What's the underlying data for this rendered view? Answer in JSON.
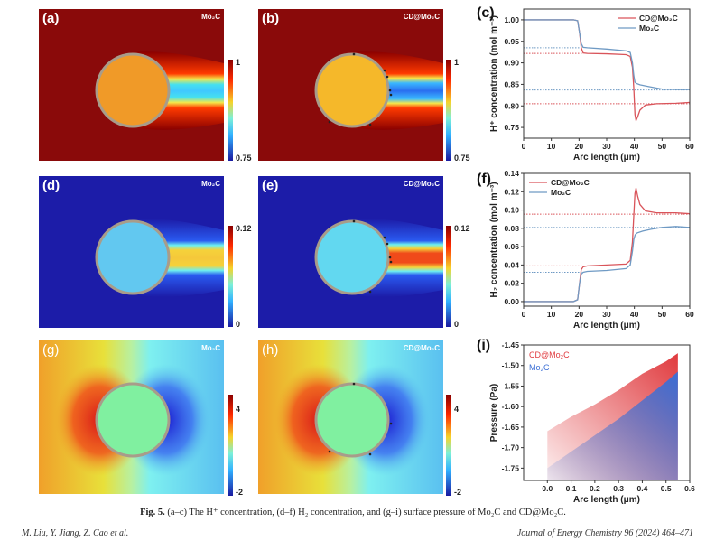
{
  "panels": {
    "a": {
      "label": "(a)",
      "material": "Mo₂C",
      "quantity": "H+ concentration",
      "colorbar": {
        "max": "1",
        "min": "0.75"
      }
    },
    "b": {
      "label": "(b)",
      "material": "CD@Mo₂C",
      "quantity": "H+ concentration",
      "colorbar": {
        "max": "1",
        "min": "0.75"
      }
    },
    "c": {
      "label": "(c)"
    },
    "d": {
      "label": "(d)",
      "material": "Mo₂C",
      "quantity": "H2 concentration",
      "colorbar": {
        "max": "0.12",
        "min": "0"
      }
    },
    "e": {
      "label": "(e)",
      "material": "CD@Mo₂C",
      "quantity": "H2 concentration",
      "colorbar": {
        "max": "0.12",
        "min": "0"
      }
    },
    "f": {
      "label": "(f)"
    },
    "g": {
      "label": "(g)",
      "material": "Mo₂C",
      "quantity": "surface pressure",
      "colorbar": {
        "max": "4",
        "min": "-2"
      }
    },
    "h": {
      "label": "(h)",
      "material": "CD@Mo₂C",
      "quantity": "surface pressure",
      "colorbar": {
        "max": "4",
        "min": "-2"
      }
    },
    "i": {
      "label": "(i)"
    }
  },
  "colors": {
    "cd_mo2c": "#d9545a",
    "mo2c": "#6f9ac4",
    "cd_fill": "#e03a3e",
    "mo2c_fill": "#3b6fd6"
  },
  "chart_data": [
    {
      "id": "c",
      "type": "line",
      "title": "",
      "xlabel": "Arc length (μm)",
      "ylabel": "H⁺ concentration (mol m⁻³)",
      "xlim": [
        0,
        60
      ],
      "ylim": [
        0.725,
        1.025
      ],
      "xticks": [
        0,
        10,
        20,
        30,
        40,
        50,
        60
      ],
      "yticks": [
        0.75,
        0.8,
        0.85,
        0.9,
        0.95,
        1.0
      ],
      "ytick_labels": [
        "0.75",
        "0.80",
        "0.85",
        "0.90",
        "0.95",
        "1.00"
      ],
      "legend": "top-right",
      "series": [
        {
          "name": "CD@Mo₂C",
          "color": "#d9545a",
          "x": [
            0,
            18,
            19.5,
            20.2,
            20.8,
            21.5,
            23,
            30,
            37,
            38.5,
            39.3,
            39.8,
            40.2,
            40.6,
            41.2,
            42,
            44,
            48,
            55,
            60
          ],
          "y": [
            1.0,
            1.0,
            0.998,
            0.97,
            0.935,
            0.923,
            0.922,
            0.921,
            0.919,
            0.915,
            0.89,
            0.84,
            0.78,
            0.766,
            0.775,
            0.79,
            0.802,
            0.805,
            0.806,
            0.808
          ]
        },
        {
          "name": "Mo₂C",
          "color": "#6f9ac4",
          "x": [
            0,
            18,
            19.5,
            20.2,
            20.8,
            21.5,
            23,
            30,
            37,
            38.5,
            39.3,
            39.8,
            40.2,
            40.8,
            42,
            45,
            50,
            55,
            60
          ],
          "y": [
            1.0,
            1.0,
            0.998,
            0.97,
            0.945,
            0.936,
            0.935,
            0.932,
            0.928,
            0.924,
            0.9,
            0.87,
            0.855,
            0.852,
            0.849,
            0.845,
            0.839,
            0.838,
            0.838
          ]
        }
      ],
      "reference_lines": [
        {
          "y": 0.935,
          "color": "#6f9ac4",
          "xmax": 21
        },
        {
          "y": 0.922,
          "color": "#d9545a",
          "xmax": 21
        },
        {
          "y": 0.837,
          "color": "#6f9ac4",
          "xmax": 60
        },
        {
          "y": 0.805,
          "color": "#d9545a",
          "xmax": 60
        }
      ]
    },
    {
      "id": "f",
      "type": "line",
      "title": "",
      "xlabel": "Arc length (μm)",
      "ylabel": "H₂ concentration (mol m⁻³)",
      "xlim": [
        0,
        60
      ],
      "ylim": [
        -0.005,
        0.14
      ],
      "xticks": [
        0,
        10,
        20,
        30,
        40,
        50,
        60
      ],
      "yticks": [
        0.0,
        0.02,
        0.04,
        0.06,
        0.08,
        0.1,
        0.12,
        0.14
      ],
      "ytick_labels": [
        "0.00",
        "0.02",
        "0.04",
        "0.06",
        "0.08",
        "0.10",
        "0.12",
        "0.14"
      ],
      "legend": "top-left",
      "series": [
        {
          "name": "CD@Mo₂C",
          "color": "#d9545a",
          "x": [
            0,
            18,
            19.5,
            20.2,
            20.8,
            21.5,
            23,
            30,
            37,
            38.5,
            39.3,
            39.8,
            40.2,
            40.6,
            41.2,
            42,
            44,
            48,
            55,
            60
          ],
          "y": [
            0.0,
            0.0,
            0.002,
            0.02,
            0.035,
            0.038,
            0.039,
            0.04,
            0.041,
            0.045,
            0.065,
            0.095,
            0.118,
            0.124,
            0.115,
            0.106,
            0.099,
            0.097,
            0.097,
            0.096
          ]
        },
        {
          "name": "Mo₂C",
          "color": "#6f9ac4",
          "x": [
            0,
            18,
            19.5,
            20.2,
            20.8,
            21.5,
            23,
            30,
            37,
            38.5,
            39.3,
            39.8,
            40.3,
            41,
            43,
            46,
            50,
            55,
            60
          ],
          "y": [
            0.0,
            0.0,
            0.002,
            0.02,
            0.03,
            0.032,
            0.033,
            0.034,
            0.036,
            0.04,
            0.055,
            0.068,
            0.073,
            0.075,
            0.077,
            0.079,
            0.081,
            0.082,
            0.081
          ]
        }
      ],
      "reference_lines": [
        {
          "y": 0.0955,
          "color": "#d9545a",
          "xmax": 60
        },
        {
          "y": 0.081,
          "color": "#6f9ac4",
          "xmax": 60
        },
        {
          "y": 0.039,
          "color": "#d9545a",
          "xmax": 21
        },
        {
          "y": 0.032,
          "color": "#6f9ac4",
          "xmax": 21
        }
      ]
    },
    {
      "id": "i",
      "type": "area",
      "title": "",
      "xlabel": "Arc length (μm)",
      "ylabel": "Pressure (Pa)",
      "xlim": [
        -0.1,
        0.6
      ],
      "ylim": [
        -1.78,
        -1.45
      ],
      "xticks": [
        0.0,
        0.1,
        0.2,
        0.3,
        0.4,
        0.5,
        0.6
      ],
      "xtick_labels": [
        "0.0",
        "0.1",
        "0.2",
        "0.3",
        "0.4",
        "0.5",
        "0.6"
      ],
      "yticks": [
        -1.75,
        -1.7,
        -1.65,
        -1.6,
        -1.55,
        -1.5,
        -1.45
      ],
      "ytick_labels": [
        "-1.75",
        "-1.70",
        "-1.65",
        "-1.60",
        "-1.55",
        "-1.50",
        "-1.45"
      ],
      "legend": "top-left",
      "series": [
        {
          "name": "CD@Mo₂C",
          "color": "#e03a3e",
          "x": [
            0.0,
            0.1,
            0.2,
            0.3,
            0.4,
            0.5,
            0.55
          ],
          "y": [
            -1.66,
            -1.625,
            -1.595,
            -1.56,
            -1.52,
            -1.49,
            -1.47
          ]
        },
        {
          "name": "Mo₂C",
          "color": "#3b6fd6",
          "x": [
            0.0,
            0.1,
            0.2,
            0.3,
            0.4,
            0.5,
            0.55
          ],
          "y": [
            -1.75,
            -1.71,
            -1.67,
            -1.63,
            -1.585,
            -1.54,
            -1.515
          ]
        }
      ]
    }
  ],
  "caption": {
    "fig_label": "Fig. 5.",
    "text": " (a–c) The H⁺ concentration, (d–f) H₂ concentration, and (g–i) surface pressure of Mo₂C and CD@Mo₂C."
  },
  "footer": {
    "authors": "M. Liu, Y. Jiang, Z. Cao et al.",
    "journal": "Journal of Energy Chemistry 96 (2024) 464–471"
  }
}
